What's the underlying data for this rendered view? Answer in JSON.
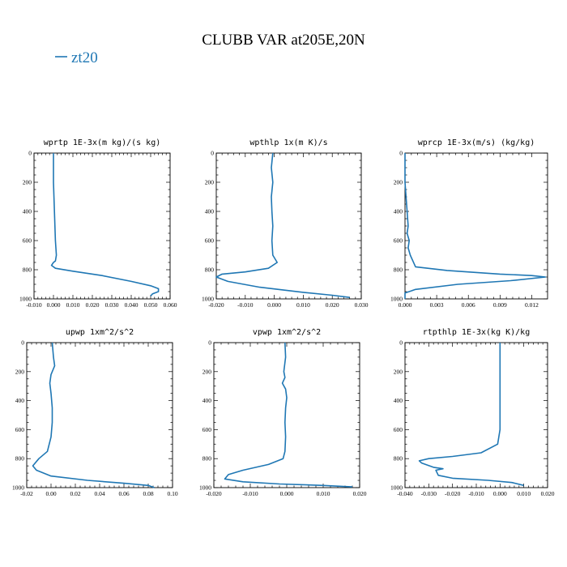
{
  "title": "CLUBB VAR at205E,20N",
  "legend": {
    "label": "zt20",
    "color": "#1f77b4"
  },
  "chart_data": [
    {
      "type": "line",
      "title": "wprtp  1E-3x(m kg)/(s kg)",
      "xlim": [
        -0.01,
        0.06
      ],
      "ylim": [
        1000,
        0
      ],
      "xticks": [
        -0.01,
        0.0,
        0.01,
        0.02,
        0.03,
        0.04,
        0.05,
        0.06
      ],
      "xticklabels": [
        "-0.010",
        "0.000",
        "0.010",
        "0.020",
        "0.030",
        "0.040",
        "0.050",
        "0.060"
      ],
      "yticks": [
        0,
        200,
        400,
        600,
        800,
        1000
      ],
      "yticklabels": [
        "0",
        "200",
        "400",
        "600",
        "800",
        "1000"
      ],
      "series": [
        {
          "color": "#1f77b4",
          "x": [
            0.0,
            0.0,
            0.0005,
            0.001,
            0.0015,
            0.001,
            0.0,
            -0.001,
            0.001,
            0.01,
            0.025,
            0.04,
            0.05,
            0.054,
            0.054,
            0.051,
            0.05
          ],
          "y": [
            0,
            200,
            400,
            600,
            700,
            740,
            750,
            770,
            790,
            810,
            840,
            880,
            910,
            930,
            950,
            965,
            980
          ]
        }
      ]
    },
    {
      "type": "line",
      "title": "wpthlp  1x(m K)/s",
      "xlim": [
        -0.02,
        0.03
      ],
      "ylim": [
        1000,
        0
      ],
      "xticks": [
        -0.02,
        -0.01,
        0.0,
        0.01,
        0.02,
        0.03
      ],
      "xticklabels": [
        "-0.020",
        "-0.010",
        "0.000",
        "0.010",
        "0.020",
        "0.030"
      ],
      "yticks": [
        0,
        200,
        400,
        600,
        800,
        1000
      ],
      "yticklabels": [
        "0",
        "200",
        "400",
        "600",
        "800",
        "1000"
      ],
      "series": [
        {
          "color": "#1f77b4",
          "x": [
            -0.0005,
            -0.001,
            -0.0005,
            -0.001,
            -0.0008,
            -0.0005,
            -0.0008,
            -0.0005,
            0.001,
            -0.002,
            -0.01,
            -0.018,
            -0.02,
            -0.016,
            -0.005,
            0.01,
            0.02,
            0.026
          ],
          "y": [
            0,
            100,
            200,
            300,
            400,
            500,
            600,
            700,
            750,
            790,
            815,
            830,
            850,
            880,
            920,
            955,
            975,
            990
          ]
        }
      ]
    },
    {
      "type": "line",
      "title": "wprcp  1E-3x(m/s) (kg/kg)",
      "xlim": [
        0.0,
        0.0135
      ],
      "ylim": [
        1000,
        0
      ],
      "xticks": [
        0.0,
        0.003,
        0.006,
        0.009,
        0.012
      ],
      "xticklabels": [
        "0.000",
        "0.003",
        "0.006",
        "0.009",
        "0.012"
      ],
      "yticks": [
        0,
        200,
        400,
        600,
        800,
        1000
      ],
      "yticklabels": [
        "0",
        "200",
        "400",
        "600",
        "800",
        "1000"
      ],
      "series": [
        {
          "color": "#1f77b4",
          "x": [
            0.0,
            0.0,
            0.0002,
            0.0003,
            0.0002,
            0.0004,
            0.0003,
            0.0005,
            0.001,
            0.004,
            0.009,
            0.012,
            0.0133,
            0.01,
            0.005,
            0.001,
            0.0,
            0.0
          ],
          "y": [
            0,
            200,
            400,
            500,
            550,
            600,
            650,
            700,
            780,
            805,
            830,
            840,
            850,
            875,
            900,
            935,
            960,
            1000
          ]
        }
      ]
    },
    {
      "type": "line",
      "title": "upwp  1xm^2/s^2",
      "xlim": [
        -0.02,
        0.1
      ],
      "ylim": [
        1000,
        0
      ],
      "xticks": [
        -0.02,
        0.0,
        0.02,
        0.04,
        0.06,
        0.08,
        0.1
      ],
      "xticklabels": [
        "-0.02",
        "0.00",
        "0.02",
        "0.04",
        "0.06",
        "0.08",
        "0.10"
      ],
      "yticks": [
        0,
        200,
        400,
        600,
        800,
        1000
      ],
      "yticklabels": [
        "0",
        "200",
        "400",
        "600",
        "800",
        "1000"
      ],
      "series": [
        {
          "color": "#1f77b4",
          "x": [
            0.001,
            0.002,
            0.003,
            0.0,
            -0.001,
            0.0,
            0.001,
            0.001,
            0.0,
            -0.003,
            -0.01,
            -0.015,
            -0.012,
            0.0,
            0.03,
            0.06,
            0.08,
            0.085
          ],
          "y": [
            0,
            100,
            160,
            220,
            280,
            350,
            450,
            550,
            650,
            750,
            800,
            850,
            880,
            920,
            950,
            970,
            985,
            1000
          ]
        }
      ]
    },
    {
      "type": "line",
      "title": "vpwp  1xm^2/s^2",
      "xlim": [
        -0.02,
        0.02
      ],
      "ylim": [
        1000,
        0
      ],
      "xticks": [
        -0.02,
        -0.01,
        0.0,
        0.01,
        0.02
      ],
      "xticklabels": [
        "-0.020",
        "-0.010",
        "0.000",
        "0.010",
        "0.020"
      ],
      "yticks": [
        0,
        200,
        400,
        600,
        800,
        1000
      ],
      "yticklabels": [
        "0",
        "200",
        "400",
        "600",
        "800",
        "1000"
      ],
      "series": [
        {
          "color": "#1f77b4",
          "x": [
            -0.0005,
            -0.0003,
            -0.0008,
            -0.0005,
            -0.0012,
            -0.0003,
            0.0,
            -0.0003,
            -0.0005,
            -0.0003,
            -0.0005,
            -0.001,
            -0.005,
            -0.012,
            -0.016,
            -0.017,
            -0.012,
            -0.002,
            0.01,
            0.018
          ],
          "y": [
            0,
            100,
            200,
            240,
            280,
            320,
            380,
            450,
            550,
            650,
            750,
            800,
            840,
            880,
            910,
            940,
            960,
            975,
            985,
            995
          ]
        }
      ]
    },
    {
      "type": "line",
      "title": "rtpthlp  1E-3x(kg K)/kg",
      "xlim": [
        -0.04,
        0.02
      ],
      "ylim": [
        1000,
        0
      ],
      "xticks": [
        -0.04,
        -0.03,
        -0.02,
        -0.01,
        0.0,
        0.01,
        0.02
      ],
      "xticklabels": [
        "-0.040",
        "-0.030",
        "-0.020",
        "-0.010",
        "0.000",
        "0.010",
        "0.020"
      ],
      "yticks": [
        0,
        200,
        400,
        600,
        800,
        1000
      ],
      "yticklabels": [
        "0",
        "200",
        "400",
        "600",
        "800",
        "1000"
      ],
      "series": [
        {
          "color": "#1f77b4",
          "x": [
            0.0,
            0.0,
            0.0,
            0.0,
            -0.001,
            -0.008,
            -0.02,
            -0.03,
            -0.034,
            -0.033,
            -0.028,
            -0.024,
            -0.027,
            -0.026,
            -0.02,
            -0.005,
            0.005,
            0.01
          ],
          "y": [
            0,
            200,
            400,
            600,
            700,
            760,
            785,
            800,
            815,
            830,
            860,
            870,
            880,
            915,
            935,
            950,
            965,
            985
          ]
        }
      ]
    }
  ]
}
